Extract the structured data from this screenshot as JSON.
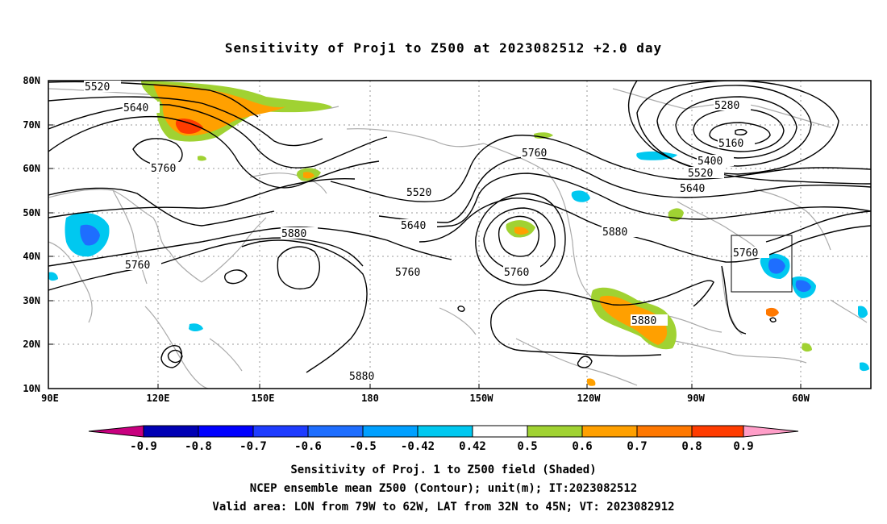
{
  "title": "Sensitivity of Proj1 to Z500 at 2023082512 +2.0 day",
  "lat_labels": [
    "80N",
    "70N",
    "60N",
    "50N",
    "40N",
    "30N",
    "20N",
    "10N"
  ],
  "lon_labels": [
    "90E",
    "120E",
    "150E",
    "180",
    "150W",
    "120W",
    "90W",
    "60W"
  ],
  "contour_labels": [
    "5520",
    "5640",
    "5760",
    "5520",
    "5640",
    "5760",
    "5760",
    "5880",
    "5760",
    "5880",
    "5280",
    "5160",
    "5400",
    "5520",
    "5640",
    "5760",
    "5880",
    "5880"
  ],
  "colorbar": {
    "labels": [
      "-0.9",
      "-0.8",
      "-0.7",
      "-0.6",
      "-0.5",
      "-0.42",
      "0.42",
      "0.5",
      "0.6",
      "0.7",
      "0.8",
      "0.9"
    ],
    "colors": [
      "#c8007f",
      "#0000b4",
      "#0000ff",
      "#1e3cff",
      "#1e6eff",
      "#00a0ff",
      "#00c8f0",
      "#ffffff",
      "#a0d232",
      "#ffa000",
      "#ff7800",
      "#ff3c00",
      "#ff0000",
      "#ff9ec8"
    ]
  },
  "caption": {
    "line1": "Sensitivity of Proj. 1 to Z500 field (Shaded)",
    "line2": "NCEP ensemble mean Z500 (Contour); unit(m); IT:2023082512",
    "line3": "Valid area: LON from 79W to 62W, LAT from 32N to 45N; VT: 2023082912"
  }
}
